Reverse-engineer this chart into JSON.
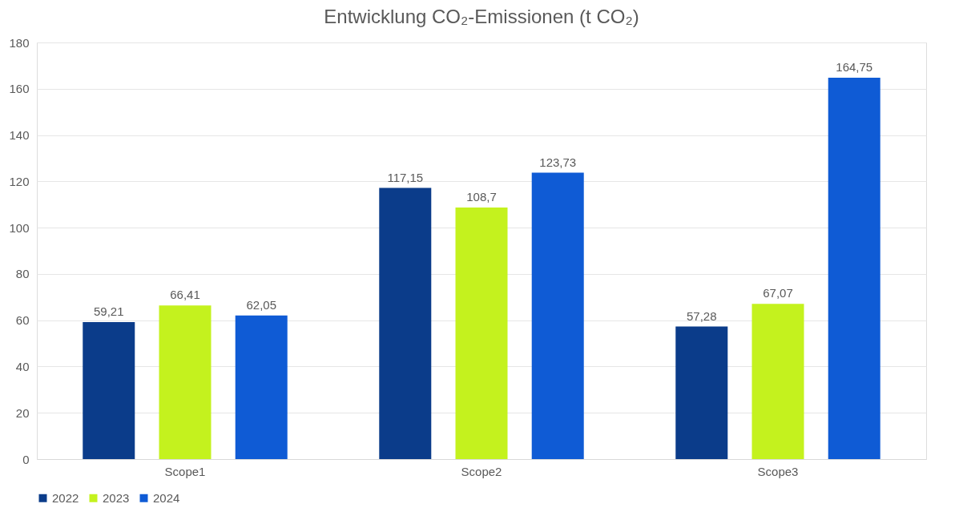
{
  "chart_data": {
    "type": "bar",
    "title": "Entwicklung CO₂-Emissionen (t CO₂)",
    "categories": [
      "Scope1",
      "Scope2",
      "Scope3"
    ],
    "series": [
      {
        "name": "2022",
        "color": "#0b3c8a",
        "values": [
          59.21,
          117.15,
          57.28
        ],
        "value_labels": [
          "59,21",
          "117,15",
          "57,28"
        ]
      },
      {
        "name": "2023",
        "color": "#c4f21e",
        "values": [
          66.41,
          108.7,
          67.07
        ],
        "value_labels": [
          "66,41",
          "108,7",
          "67,07"
        ]
      },
      {
        "name": "2024",
        "color": "#0f5bd5",
        "values": [
          62.05,
          123.73,
          164.75
        ],
        "value_labels": [
          "62,05",
          "123,73",
          "164,75"
        ]
      }
    ],
    "ylim": [
      0,
      180
    ],
    "yticks": [
      0,
      20,
      40,
      60,
      80,
      100,
      120,
      140,
      160,
      180
    ],
    "grid": "y",
    "legend": "bottom"
  }
}
